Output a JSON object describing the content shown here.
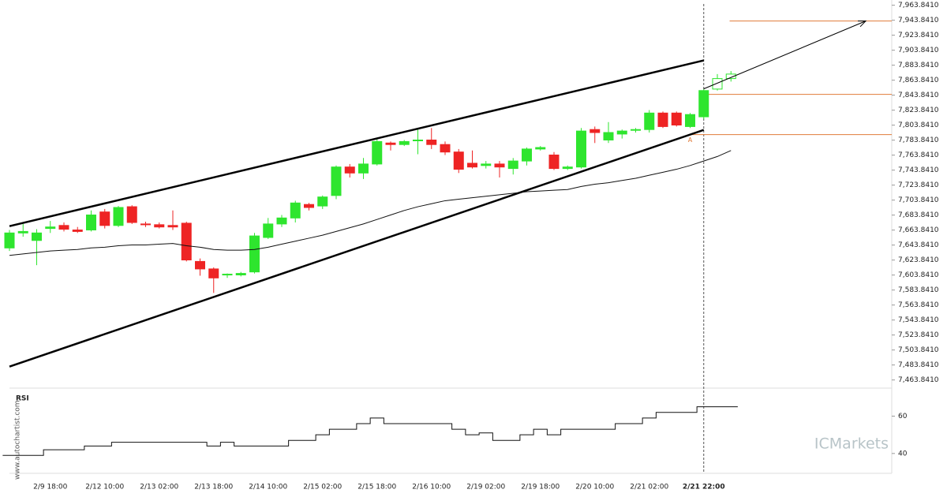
{
  "chart_data": [
    {
      "type": "candlestick",
      "categories": [
        null,
        null,
        null,
        "2/9 18:00",
        null,
        null,
        null,
        "2/12 10:00",
        null,
        null,
        null,
        "2/13 02:00",
        null,
        null,
        null,
        "2/13 18:00",
        null,
        null,
        null,
        "2/14 10:00",
        null,
        null,
        null,
        "2/15 02:00",
        null,
        null,
        null,
        "2/15 18:00",
        null,
        null,
        null,
        "2/16 10:00",
        null,
        null,
        null,
        "2/19 02:00",
        null,
        null,
        null,
        "2/19 18:00",
        null,
        null,
        null,
        "2/20 10:00",
        null,
        null,
        null,
        "2/21 02:00",
        null,
        null,
        null,
        "2/21 22:00",
        null,
        null
      ],
      "open": [
        7640,
        7660,
        7650,
        7666,
        7670,
        7664,
        7664,
        7688,
        7670,
        7695,
        7672,
        7671,
        7670,
        7673,
        7622,
        7612,
        7604,
        7604,
        7608,
        7654,
        7672,
        7680,
        7698,
        7696,
        7710,
        7748,
        7740,
        7752,
        7780,
        7778,
        7784,
        7784,
        7778,
        7768,
        7753,
        7750,
        7752,
        7746,
        7756,
        7772,
        7764,
        7746,
        7748,
        7798,
        7784,
        7792,
        7797,
        7798,
        7820,
        7820,
        7802,
        7815,
        7852,
        7866
      ],
      "high": [
        7664,
        7672,
        7665,
        7676,
        7674,
        7668,
        7690,
        7692,
        7696,
        7697,
        7675,
        7674,
        7690,
        7675,
        7626,
        7614,
        7606,
        7608,
        7660,
        7680,
        7684,
        7703,
        7700,
        7710,
        7750,
        7752,
        7760,
        7785,
        7782,
        7784,
        7800,
        7800,
        7782,
        7772,
        7770,
        7756,
        7756,
        7760,
        7774,
        7776,
        7768,
        7750,
        7800,
        7802,
        7808,
        7798,
        7800,
        7824,
        7822,
        7822,
        7820,
        7852,
        7872,
        7876
      ],
      "low": [
        7636,
        7655,
        7617,
        7660,
        7662,
        7660,
        7662,
        7666,
        7668,
        7672,
        7668,
        7666,
        7664,
        7622,
        7603,
        7580,
        7600,
        7602,
        7606,
        7652,
        7668,
        7674,
        7690,
        7692,
        7705,
        7734,
        7732,
        7750,
        7770,
        7776,
        7765,
        7772,
        7764,
        7740,
        7746,
        7746,
        7734,
        7738,
        7750,
        7770,
        7744,
        7744,
        7746,
        7780,
        7780,
        7786,
        7794,
        7794,
        7800,
        7802,
        7800,
        7812,
        7850,
        7862
      ],
      "close": [
        7660,
        7662,
        7660,
        7668,
        7665,
        7662,
        7684,
        7670,
        7694,
        7674,
        7671,
        7668,
        7668,
        7624,
        7612,
        7600,
        7605,
        7606,
        7656,
        7672,
        7680,
        7700,
        7694,
        7708,
        7748,
        7740,
        7752,
        7782,
        7778,
        7782,
        7784,
        7778,
        7768,
        7745,
        7748,
        7752,
        7748,
        7756,
        7772,
        7774,
        7746,
        7748,
        7796,
        7794,
        7794,
        7796,
        7798,
        7820,
        7802,
        7804,
        7818,
        7850,
        7866,
        7872
      ],
      "hollow": [
        false,
        false,
        false,
        false,
        false,
        false,
        false,
        false,
        false,
        false,
        false,
        false,
        false,
        false,
        false,
        false,
        false,
        false,
        false,
        false,
        false,
        false,
        false,
        false,
        false,
        false,
        false,
        false,
        false,
        false,
        false,
        false,
        false,
        false,
        false,
        false,
        false,
        false,
        false,
        false,
        false,
        false,
        false,
        false,
        false,
        false,
        false,
        false,
        false,
        false,
        false,
        false,
        true,
        true
      ],
      "up_color": "#2ee52e",
      "down_color": "#ee2424",
      "ma": {
        "color": "#111111",
        "values": [
          7630,
          7632,
          7634,
          7636,
          7637,
          7638,
          7640,
          7641,
          7643,
          7644,
          7644,
          7645,
          7646,
          7643,
          7641,
          7638,
          7637,
          7637,
          7638,
          7641,
          7645,
          7649,
          7653,
          7657,
          7662,
          7667,
          7672,
          7678,
          7684,
          7690,
          7695,
          7699,
          7703,
          7705,
          7707,
          7709,
          7711,
          7713,
          7715,
          7716,
          7717,
          7718,
          7722,
          7725,
          7727,
          7730,
          7733,
          7737,
          7741,
          7745,
          7750,
          7756,
          7762,
          7770
        ]
      },
      "trendlines": [
        {
          "x": [
            0,
            51
          ],
          "values": [
            7669.1,
            7890.2
          ]
        },
        {
          "x": [
            0,
            51
          ],
          "values": [
            7481.7,
            7797.5
          ]
        }
      ],
      "forecast": {
        "x": [
          51,
          62.9
        ],
        "values": [
          7852.3,
          7942.8
        ]
      },
      "levels": [
        {
          "x": 52.9,
          "value": 7942.8,
          "color": "#e07b39"
        },
        {
          "x": 51.2,
          "value": 7844.9,
          "color": "#e07b39"
        },
        {
          "x": 50,
          "value": 7791.2,
          "color": "#e07b39"
        }
      ],
      "annotations": [
        {
          "text": "A",
          "x": 50,
          "value": 7784
        }
      ],
      "marker_x": 51,
      "ylim": [
        7453.841,
        7970.841
      ],
      "yticks": [
        {
          "value": 7463.841,
          "label": "7,463.8410"
        },
        {
          "value": 7483.841,
          "label": "7,483.8410"
        },
        {
          "value": 7503.841,
          "label": "7,503.8410"
        },
        {
          "value": 7523.841,
          "label": "7,523.8410"
        },
        {
          "value": 7543.841,
          "label": "7,543.8410"
        },
        {
          "value": 7563.841,
          "label": "7,563.8410"
        },
        {
          "value": 7583.841,
          "label": "7,583.8410"
        },
        {
          "value": 7603.841,
          "label": "7,603.8410"
        },
        {
          "value": 7623.841,
          "label": "7,623.8410"
        },
        {
          "value": 7643.841,
          "label": "7,643.8410"
        },
        {
          "value": 7663.841,
          "label": "7,663.8410"
        },
        {
          "value": 7683.841,
          "label": "7,683.8410"
        },
        {
          "value": 7703.841,
          "label": "7,703.8410"
        },
        {
          "value": 7723.841,
          "label": "7,723.8410"
        },
        {
          "value": 7743.841,
          "label": "7,743.8410"
        },
        {
          "value": 7763.841,
          "label": "7,763.8410"
        },
        {
          "value": 7783.841,
          "label": "7,783.8410"
        },
        {
          "value": 7803.841,
          "label": "7,803.8410"
        },
        {
          "value": 7823.841,
          "label": "7,823.8410"
        },
        {
          "value": 7843.841,
          "label": "7,843.8410"
        },
        {
          "value": 7863.841,
          "label": "7,863.8410"
        },
        {
          "value": 7883.841,
          "label": "7,883.8410"
        },
        {
          "value": 7903.841,
          "label": "7,903.8410"
        },
        {
          "value": 7923.841,
          "label": "7,923.8410"
        },
        {
          "value": 7943.841,
          "label": "7,943.8410"
        },
        {
          "value": 7963.841,
          "label": "7,963.8410"
        }
      ],
      "watermark": "www.autochartist.com",
      "brand": "ICMarkets"
    },
    {
      "type": "line",
      "title": "RSI",
      "color": "#111111",
      "values": [
        39,
        39,
        39,
        42,
        42,
        42,
        44,
        44,
        46,
        46,
        46,
        46,
        46,
        46,
        46,
        44,
        46,
        44,
        44,
        44,
        44,
        47,
        47,
        50,
        53,
        53,
        56,
        59,
        56,
        56,
        56,
        56,
        56,
        53,
        50,
        51,
        47,
        47,
        50,
        53,
        50,
        53,
        53,
        53,
        53,
        56,
        56,
        59,
        62,
        62,
        62,
        65,
        65,
        65
      ],
      "ylim": [
        30,
        75
      ],
      "yticks": [
        40,
        60
      ]
    }
  ]
}
